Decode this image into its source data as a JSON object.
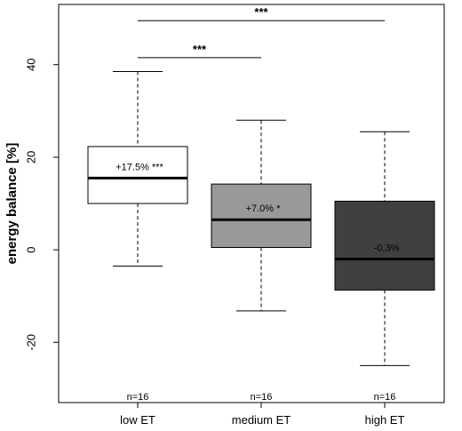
{
  "chart_data": {
    "type": "box",
    "title": "",
    "xlabel": "",
    "ylabel": "energy balance [%]",
    "ylim": [
      -33,
      53
    ],
    "yticks": [
      -20,
      0,
      20,
      40
    ],
    "grid": false,
    "categories": [
      "low ET",
      "medium ET",
      "high ET"
    ],
    "boxes": [
      {
        "category": "low ET",
        "whisker_low": -3.5,
        "q1": 10,
        "median": 15.5,
        "q3": 22.3,
        "whisker_high": 38.5,
        "fill": "#ffffff",
        "annotation": "+17.5% ***",
        "n_label": "n=16"
      },
      {
        "category": "medium ET",
        "whisker_low": -13.2,
        "q1": 0.5,
        "median": 6.5,
        "q3": 14.2,
        "whisker_high": 28.0,
        "fill": "#999999",
        "annotation": "+7.0% *",
        "n_label": "n=16"
      },
      {
        "category": "high ET",
        "whisker_low": -25.0,
        "q1": -8.7,
        "median": -2.0,
        "q3": 10.5,
        "whisker_high": 25.5,
        "fill": "#404040",
        "annotation": "-0.3%",
        "n_label": "n=16"
      }
    ],
    "significance": [
      {
        "from": "low ET",
        "to": "medium ET",
        "y": 41.5,
        "label": "***"
      },
      {
        "from": "low ET",
        "to": "high ET",
        "y": 49.5,
        "label": "***"
      }
    ]
  }
}
